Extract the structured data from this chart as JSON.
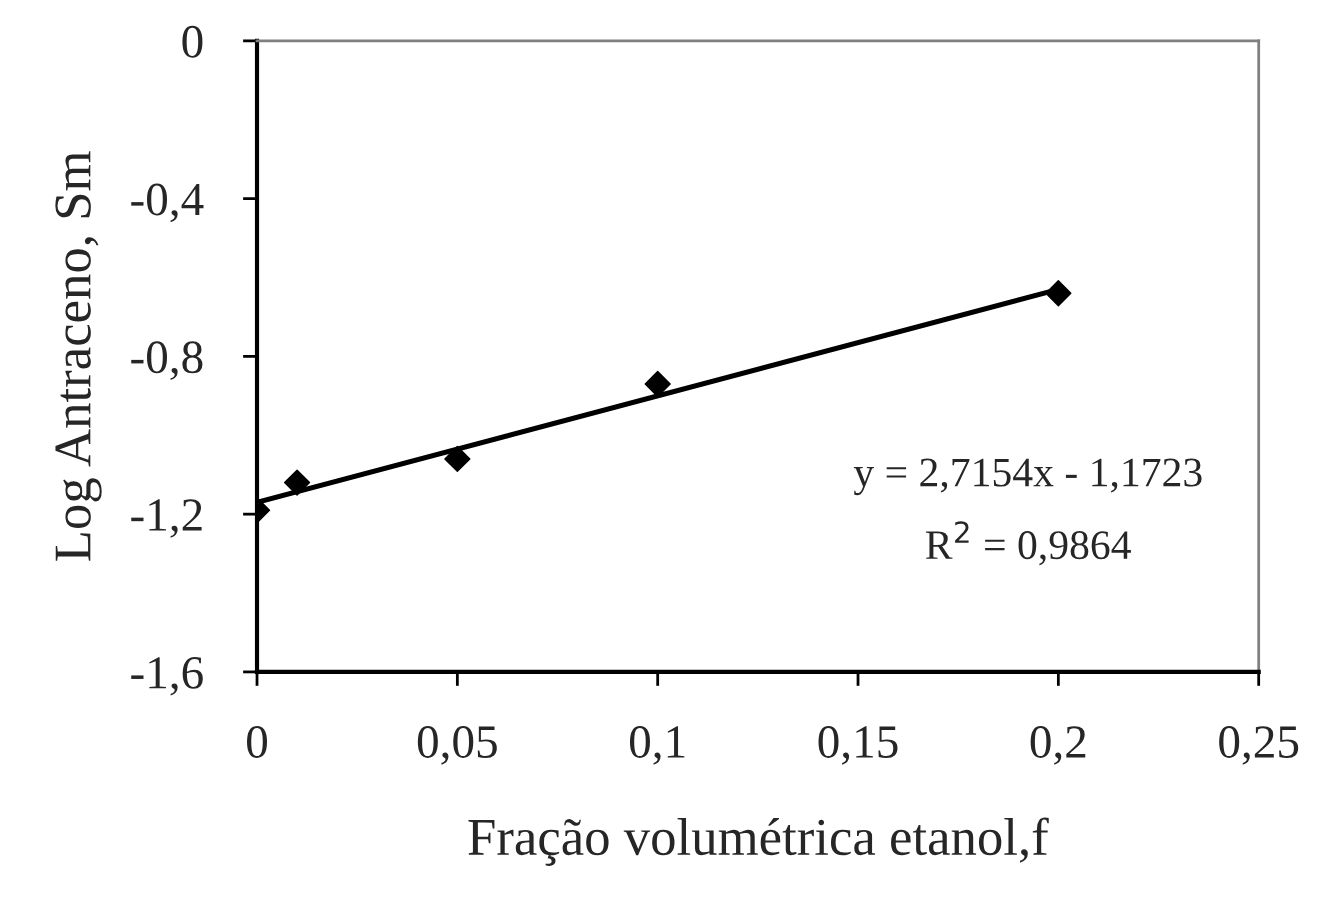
{
  "chart_data": {
    "type": "scatter",
    "xlabel": "Fração volumétrica etanol,f",
    "ylabel": "Log Antraceno, Sm",
    "series": [
      {
        "color": "#000000",
        "marker": "diamond",
        "x": [
          0,
          0.01,
          0.05,
          0.1,
          0.2
        ],
        "values": [
          -1.19,
          -1.12,
          -1.06,
          -0.87,
          -0.64
        ]
      },
      {
        "type": "line",
        "color": "#000000",
        "marker": "none",
        "line_style": "solid",
        "x": [
          0,
          0.2
        ],
        "values": [
          -1.17,
          -0.63
        ]
      }
    ],
    "xlim": [
      0,
      0.25
    ],
    "ylim": [
      -1.6,
      0
    ],
    "xticks": [
      0,
      {
        "value": 0.05,
        "label": "0,05"
      },
      {
        "value": 0.1,
        "label": "0,1"
      },
      {
        "value": 0.15,
        "label": "0,15"
      },
      {
        "value": 0.2,
        "label": "0,2"
      },
      {
        "value": 0.25,
        "label": "0,25"
      }
    ],
    "yticks": [
      {
        "value": -1.6,
        "label": "-1,6"
      },
      {
        "value": -1.2,
        "label": "-1,2"
      },
      {
        "value": -0.8,
        "label": "-0,8"
      },
      {
        "value": -0.4,
        "label": "-0,4"
      },
      0
    ],
    "grid": false,
    "legend": false,
    "annotations": [
      "y = 2,7154x - 1,1723",
      "R$^{2}$ = 0,9864"
    ]
  }
}
